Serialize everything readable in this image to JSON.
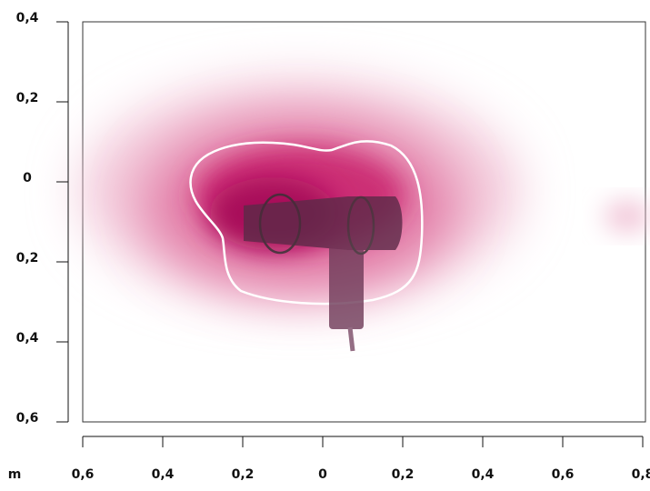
{
  "chart_data": {
    "type": "heatmap",
    "x_unit_label": "m",
    "xlim": [
      -0.6,
      0.8
    ],
    "ylim": [
      -0.6,
      0.4
    ],
    "xticks": [
      {
        "value": -0.6,
        "label": "0,6"
      },
      {
        "value": -0.4,
        "label": "0,4"
      },
      {
        "value": -0.2,
        "label": "0,2"
      },
      0,
      {
        "value": 0.2,
        "label": "0,2"
      },
      {
        "value": 0.4,
        "label": "0,4"
      },
      {
        "value": 0.6,
        "label": "0,6"
      },
      {
        "value": 0.8,
        "label": "0,8"
      }
    ],
    "yticks": [
      {
        "value": 0.4,
        "label": "0,4"
      },
      {
        "value": 0.2,
        "label": "0,2"
      },
      0,
      {
        "value": -0.2,
        "label": "0,2"
      },
      {
        "value": -0.4,
        "label": "0,4"
      },
      {
        "value": -0.6,
        "label": "0,6"
      }
    ]
  }
}
